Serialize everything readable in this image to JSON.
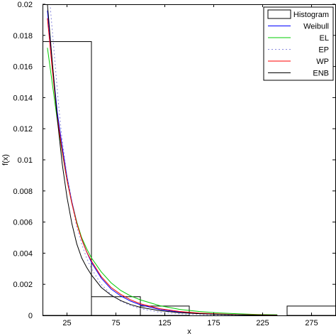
{
  "chart_data": {
    "type": "line",
    "title": "",
    "xlabel": "x",
    "ylabel": "f(x)",
    "xlim": [
      0,
      300
    ],
    "ylim": [
      0,
      0.02
    ],
    "x_ticks": [
      25,
      75,
      125,
      175,
      225,
      275
    ],
    "x_tick_labels": [
      "25",
      "75",
      "125",
      "175",
      "225",
      "275"
    ],
    "y_ticks": [
      0,
      0.002,
      0.004,
      0.006,
      0.008,
      0.01,
      0.012,
      0.014,
      0.016,
      0.018,
      0.02
    ],
    "y_tick_labels": [
      "0",
      "0.002",
      "0.004",
      "0.006",
      "0.008",
      "0.01",
      "0.012",
      "0.014",
      "0.016",
      "0.018",
      "0.02"
    ],
    "grid": false,
    "legend_position": "top-right",
    "histogram": {
      "name": "Histogram",
      "color": "#000000",
      "bins": [
        {
          "x0": 0,
          "x1": 50,
          "density": 0.0176
        },
        {
          "x0": 50,
          "x1": 100,
          "density": 0.0012
        },
        {
          "x0": 100,
          "x1": 150,
          "density": 0.0006
        },
        {
          "x0": 150,
          "x1": 200,
          "density": 0.0
        },
        {
          "x0": 200,
          "x1": 250,
          "density": 0.0
        },
        {
          "x0": 250,
          "x1": 300,
          "density": 0.0006
        }
      ]
    },
    "series": [
      {
        "name": "Weibull",
        "color": "#0000ff",
        "dash": "",
        "x": [
          5,
          10,
          15,
          20,
          25,
          30,
          35,
          40,
          45,
          50,
          60,
          70,
          80,
          90,
          100,
          120,
          140,
          160,
          180,
          200,
          220,
          240
        ],
        "y": [
          0.0196,
          0.0162,
          0.0131,
          0.0109,
          0.0089,
          0.0073,
          0.006,
          0.0049,
          0.0041,
          0.0034,
          0.0024,
          0.0017,
          0.00125,
          0.00092,
          0.00068,
          0.00038,
          0.00021,
          0.00012,
          7e-05,
          4e-05,
          2e-05,
          1e-05
        ]
      },
      {
        "name": "EL",
        "color": "#00cc00",
        "dash": "",
        "x": [
          5,
          10,
          15,
          20,
          25,
          30,
          35,
          40,
          45,
          50,
          60,
          70,
          80,
          90,
          100,
          120,
          140,
          160,
          180,
          200,
          220,
          240
        ],
        "y": [
          0.0172,
          0.0149,
          0.0126,
          0.0105,
          0.0087,
          0.0072,
          0.006,
          0.005,
          0.0043,
          0.0037,
          0.0028,
          0.0021,
          0.0016,
          0.00125,
          0.001,
          0.00062,
          0.00039,
          0.00025,
          0.00016,
          0.0001,
          6e-05,
          4e-05
        ]
      },
      {
        "name": "EP",
        "color": "#8888dd",
        "dash": "2,3",
        "x": [
          8,
          12,
          16,
          20,
          25,
          30,
          35,
          40,
          45,
          50,
          60,
          70,
          80,
          90,
          100,
          120,
          140,
          160,
          180,
          200,
          220,
          240
        ],
        "y": [
          0.0198,
          0.0168,
          0.0138,
          0.0113,
          0.009,
          0.0072,
          0.0057,
          0.0046,
          0.0037,
          0.003,
          0.002,
          0.00135,
          0.00092,
          0.00063,
          0.00043,
          0.0002,
          0.0001,
          5e-05,
          2e-05,
          1e-05,
          5e-06,
          0.0
        ]
      },
      {
        "name": "WP",
        "color": "#ff0000",
        "dash": "",
        "x": [
          5,
          10,
          15,
          20,
          25,
          30,
          35,
          40,
          45,
          50,
          60,
          70,
          80,
          90,
          100,
          120,
          140,
          160,
          180,
          200,
          220,
          240
        ],
        "y": [
          0.0191,
          0.0158,
          0.0128,
          0.0106,
          0.0087,
          0.0072,
          0.0059,
          0.0049,
          0.0041,
          0.0035,
          0.0025,
          0.0018,
          0.00135,
          0.001,
          0.00075,
          0.00043,
          0.00025,
          0.00015,
          9e-05,
          5e-05,
          3e-05,
          2e-05
        ]
      },
      {
        "name": "ENB",
        "color": "#000000",
        "dash": "",
        "x": [
          5,
          10,
          15,
          20,
          25,
          30,
          35,
          40,
          45,
          50,
          60,
          70,
          80,
          90,
          100,
          120,
          140,
          160,
          180,
          200,
          220,
          240
        ],
        "y": [
          0.02,
          0.0163,
          0.0127,
          0.0098,
          0.0076,
          0.0059,
          0.0046,
          0.0037,
          0.0031,
          0.0026,
          0.0018,
          0.0013,
          0.00095,
          0.0007,
          0.00052,
          0.0003,
          0.00018,
          0.00011,
          7e-05,
          4e-05,
          2e-05,
          1e-05
        ]
      }
    ]
  }
}
